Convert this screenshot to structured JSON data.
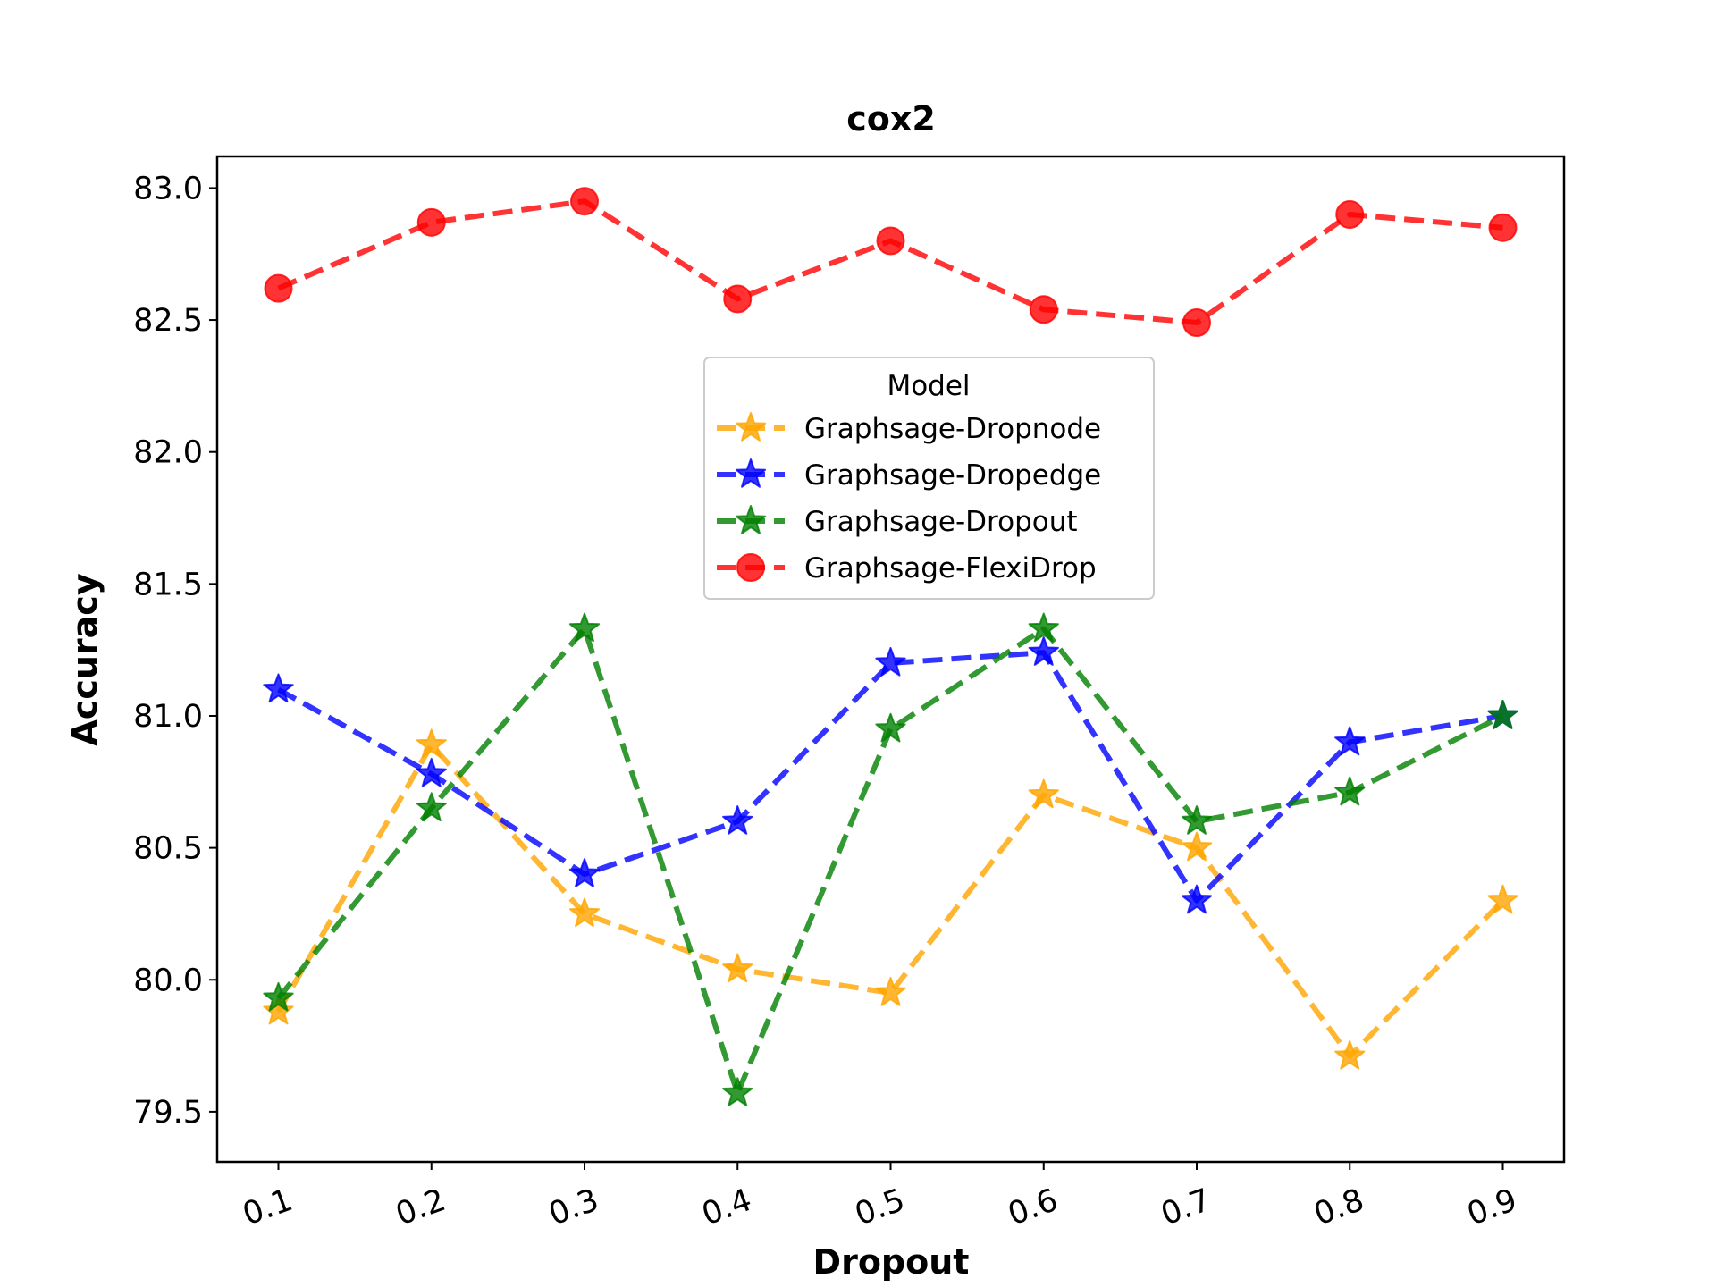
{
  "chart_data": {
    "type": "line",
    "title": "cox2",
    "xlabel": "Dropout",
    "ylabel": "Accuracy",
    "x": [
      0.1,
      0.2,
      0.3,
      0.4,
      0.5,
      0.6,
      0.7,
      0.8,
      0.9
    ],
    "x_tick_labels": [
      "0.1",
      "0.2",
      "0.3",
      "0.4",
      "0.5",
      "0.6",
      "0.7",
      "0.8",
      "0.9"
    ],
    "y_ticks": [
      79.5,
      80.0,
      80.5,
      81.0,
      81.5,
      82.0,
      82.5,
      83.0
    ],
    "y_tick_labels": [
      "79.5",
      "80.0",
      "80.5",
      "81.0",
      "81.5",
      "82.0",
      "82.5",
      "83.0"
    ],
    "ylim": [
      79.31,
      83.12
    ],
    "legend": {
      "title": "Model",
      "position": "center"
    },
    "series": [
      {
        "name": "Graphsage-Dropnode",
        "color": "#FFA500",
        "marker": "star",
        "values": [
          79.88,
          80.89,
          80.25,
          80.04,
          79.95,
          80.7,
          80.5,
          79.71,
          80.3
        ]
      },
      {
        "name": "Graphsage-Dropedge",
        "color": "#0000FF",
        "marker": "star",
        "values": [
          81.1,
          80.78,
          80.4,
          80.6,
          81.2,
          81.24,
          80.3,
          80.9,
          81.0
        ]
      },
      {
        "name": "Graphsage-Dropout",
        "color": "#008000",
        "marker": "star",
        "values": [
          79.93,
          80.65,
          81.33,
          79.57,
          80.95,
          81.33,
          80.6,
          80.71,
          81.0
        ]
      },
      {
        "name": "Graphsage-FlexiDrop",
        "color": "#FF0000",
        "marker": "circle",
        "values": [
          82.62,
          82.87,
          82.95,
          82.58,
          82.8,
          82.54,
          82.49,
          82.9,
          82.85
        ]
      }
    ]
  }
}
